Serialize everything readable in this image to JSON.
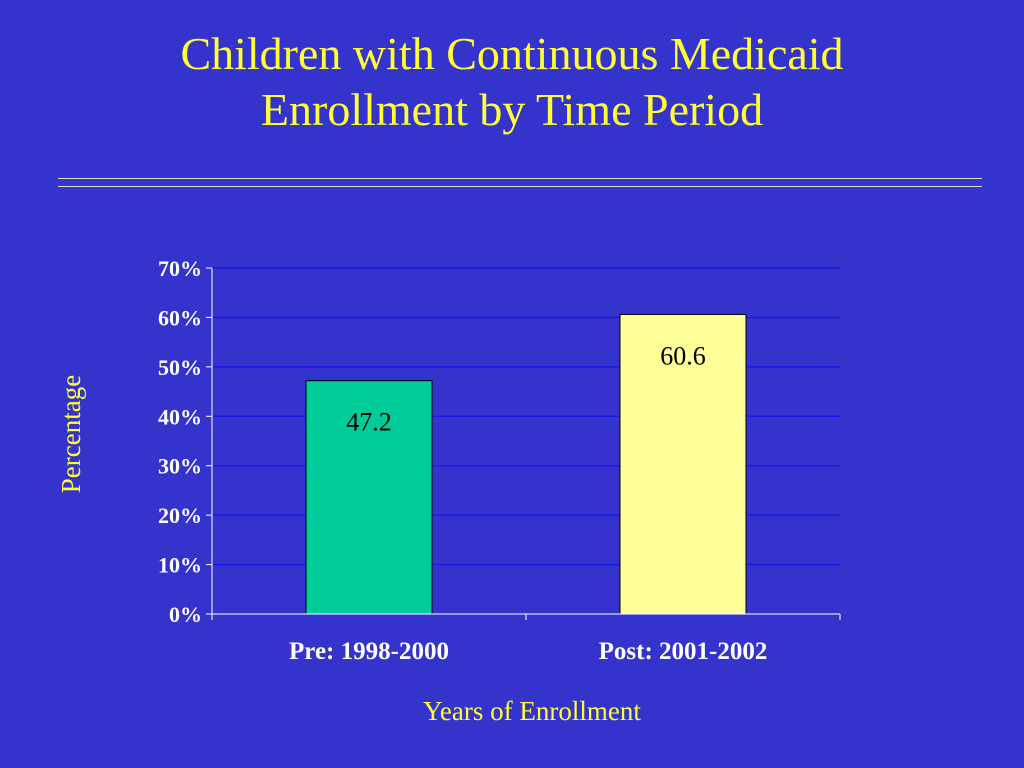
{
  "slide": {
    "title_line1": "Children with Continuous Medicaid",
    "title_line2": "Enrollment by Time Period"
  },
  "colors": {
    "background": "#3434cc",
    "title": "#ffff33",
    "gridline": "#1a1ae6",
    "axis": "#ffffff",
    "tick_text": "#ffffff"
  },
  "chart_data": {
    "type": "bar",
    "categories": [
      "Pre: 1998-2000",
      "Post: 2001-2002"
    ],
    "values": [
      47.2,
      60.6
    ],
    "data_labels": [
      "47.2",
      "60.6"
    ],
    "bar_colors": [
      "#00cc99",
      "#ffff99"
    ],
    "xlabel": "Years of Enrollment",
    "ylabel": "Percentage",
    "ylim": [
      0,
      70
    ],
    "yticks": [
      0,
      10,
      20,
      30,
      40,
      50,
      60,
      70
    ],
    "ytick_labels": [
      "0%",
      "10%",
      "20%",
      "30%",
      "40%",
      "50%",
      "60%",
      "70%"
    ],
    "grid": true,
    "legend": false
  }
}
